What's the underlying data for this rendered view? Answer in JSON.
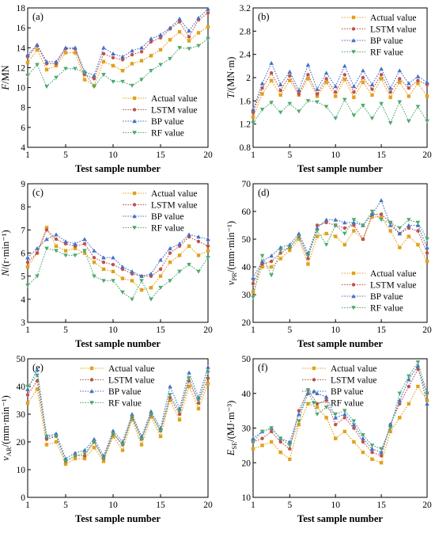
{
  "figure": {
    "series_styles": [
      {
        "name": "Actual value",
        "color": "#E0A21A",
        "marker": "square"
      },
      {
        "name": "LSTM value",
        "color": "#C0504D",
        "marker": "circle"
      },
      {
        "name": "BP value",
        "color": "#4472C4",
        "marker": "triangle-up"
      },
      {
        "name": "RF value",
        "color": "#4FA870",
        "marker": "triangle-down"
      }
    ]
  },
  "chart_data": [
    {
      "type": "line",
      "panel_label": "(a)",
      "xlabel": "Test sample number",
      "ylabel_main": "F",
      "ylabel_sub": "",
      "ylabel_unit": "/MN",
      "xlim": [
        1,
        20
      ],
      "ylim": [
        4,
        18
      ],
      "xticks": [
        1,
        5,
        10,
        15,
        20
      ],
      "yticks": [
        4,
        6,
        8,
        10,
        12,
        14,
        16,
        18
      ],
      "legend_position": "bottom-right",
      "x": [
        1,
        2,
        3,
        4,
        5,
        6,
        7,
        8,
        9,
        10,
        11,
        12,
        13,
        14,
        15,
        16,
        17,
        18,
        19,
        20
      ],
      "series": [
        {
          "name": "Actual value",
          "values": [
            12.5,
            13.8,
            11.8,
            12.2,
            13.5,
            13.5,
            10.8,
            10.2,
            12.6,
            12.2,
            11.7,
            12.4,
            12.7,
            13.2,
            13.8,
            14.8,
            15.6,
            14.7,
            15.5,
            16.1
          ]
        },
        {
          "name": "LSTM value",
          "values": [
            13.1,
            14.2,
            12.4,
            12.4,
            13.9,
            13.9,
            11.3,
            10.9,
            13.4,
            13.0,
            12.8,
            13.3,
            13.6,
            14.6,
            15.0,
            15.9,
            16.6,
            15.1,
            16.8,
            17.5
          ]
        },
        {
          "name": "BP value",
          "values": [
            13.3,
            14.3,
            12.6,
            12.6,
            14.0,
            14.0,
            11.6,
            11.2,
            14.0,
            13.4,
            13.1,
            13.7,
            14.0,
            14.9,
            15.3,
            16.0,
            16.9,
            15.7,
            17.0,
            17.9
          ]
        },
        {
          "name": "RF value",
          "values": [
            11.2,
            12.3,
            10.1,
            11.0,
            11.9,
            11.9,
            11.5,
            10.1,
            11.3,
            10.6,
            10.6,
            10.2,
            10.8,
            11.7,
            12.3,
            12.9,
            14.0,
            13.9,
            14.2,
            14.9
          ]
        }
      ]
    },
    {
      "type": "line",
      "panel_label": "(b)",
      "xlabel": "Test sample number",
      "ylabel_main": "T",
      "ylabel_sub": "",
      "ylabel_unit": "/(MN·m)",
      "xlim": [
        1,
        20
      ],
      "ylim": [
        0.8,
        3.2
      ],
      "xticks": [
        1,
        5,
        10,
        15,
        20
      ],
      "yticks": [
        0.8,
        1.2,
        1.6,
        2.0,
        2.4,
        2.8,
        3.2
      ],
      "legend_position": "top-right",
      "x": [
        1,
        2,
        3,
        4,
        5,
        6,
        7,
        8,
        9,
        10,
        11,
        12,
        13,
        14,
        15,
        16,
        17,
        18,
        19,
        20
      ],
      "series": [
        {
          "name": "Actual value",
          "values": [
            1.32,
            1.72,
            1.95,
            1.7,
            1.95,
            1.7,
            1.98,
            1.68,
            1.92,
            1.68,
            1.97,
            1.66,
            1.92,
            1.7,
            1.98,
            1.66,
            1.92,
            1.68,
            1.9,
            1.68
          ]
        },
        {
          "name": "LSTM value",
          "values": [
            1.4,
            1.82,
            2.08,
            1.78,
            2.03,
            1.72,
            2.05,
            1.72,
            1.98,
            1.75,
            2.05,
            1.75,
            2.0,
            1.8,
            2.05,
            1.75,
            1.98,
            1.82,
            1.95,
            1.88
          ]
        },
        {
          "name": "BP value",
          "values": [
            1.45,
            1.9,
            2.25,
            1.88,
            2.1,
            1.78,
            2.22,
            1.8,
            2.08,
            1.85,
            2.2,
            1.85,
            2.12,
            1.88,
            2.15,
            1.82,
            2.12,
            1.9,
            2.02,
            1.92
          ]
        },
        {
          "name": "RF value",
          "values": [
            1.22,
            1.45,
            1.57,
            1.4,
            1.55,
            1.42,
            1.6,
            1.58,
            1.5,
            1.3,
            1.62,
            1.35,
            1.52,
            1.3,
            1.55,
            1.22,
            1.58,
            1.25,
            1.5,
            1.25
          ]
        }
      ]
    },
    {
      "type": "line",
      "panel_label": "(c)",
      "xlabel": "Test sample number",
      "ylabel_main": "N",
      "ylabel_sub": "",
      "ylabel_unit": "/(r·min⁻¹)",
      "xlim": [
        1,
        20
      ],
      "ylim": [
        3,
        9
      ],
      "xticks": [
        1,
        5,
        10,
        15,
        20
      ],
      "yticks": [
        3,
        4,
        5,
        6,
        7,
        8,
        9
      ],
      "legend_position": "top-right",
      "x": [
        1,
        2,
        3,
        4,
        5,
        6,
        7,
        8,
        9,
        10,
        11,
        12,
        13,
        14,
        15,
        16,
        17,
        18,
        19,
        20
      ],
      "series": [
        {
          "name": "Actual value",
          "values": [
            5.4,
            6.0,
            7.1,
            6.3,
            6.1,
            6.2,
            6.0,
            5.6,
            5.3,
            5.2,
            4.9,
            4.8,
            4.4,
            4.5,
            5.0,
            5.6,
            5.9,
            6.3,
            5.9,
            6.1
          ]
        },
        {
          "name": "LSTM value",
          "values": [
            5.6,
            6.0,
            7.0,
            6.6,
            6.4,
            6.3,
            6.4,
            5.8,
            5.6,
            5.5,
            5.3,
            5.1,
            5.0,
            5.0,
            5.3,
            6.0,
            6.3,
            6.7,
            6.5,
            6.3
          ]
        },
        {
          "name": "BP value",
          "values": [
            5.8,
            6.2,
            6.6,
            6.8,
            6.5,
            6.4,
            6.6,
            6.1,
            5.8,
            5.8,
            5.4,
            5.2,
            5.0,
            5.1,
            5.7,
            6.2,
            6.4,
            6.8,
            6.7,
            6.6
          ]
        },
        {
          "name": "RF value",
          "values": [
            4.6,
            5.0,
            6.2,
            6.1,
            5.9,
            5.9,
            6.1,
            5.0,
            4.8,
            4.8,
            4.3,
            4.0,
            4.8,
            4.0,
            4.5,
            4.8,
            5.2,
            5.5,
            5.2,
            5.8
          ]
        }
      ]
    },
    {
      "type": "line",
      "panel_label": "(d)",
      "xlabel": "Test sample number",
      "ylabel_main": "v",
      "ylabel_sub": "PR",
      "ylabel_unit": "/(mm·min⁻¹)",
      "xlim": [
        1,
        20
      ],
      "ylim": [
        20,
        70
      ],
      "xticks": [
        1,
        5,
        10,
        15,
        20
      ],
      "yticks": [
        20,
        30,
        40,
        50,
        60,
        70
      ],
      "legend_position": "bottom-right",
      "x": [
        1,
        2,
        3,
        4,
        5,
        6,
        7,
        8,
        9,
        10,
        11,
        12,
        13,
        14,
        15,
        16,
        17,
        18,
        19,
        20
      ],
      "series": [
        {
          "name": "Actual value",
          "values": [
            31.0,
            40.0,
            40.0,
            43.0,
            46.0,
            50.0,
            41.0,
            51.0,
            52.0,
            51.0,
            48.0,
            53.0,
            50.0,
            58.0,
            58.0,
            53.0,
            47.0,
            51.0,
            48.0,
            42.0
          ]
        },
        {
          "name": "LSTM value",
          "values": [
            34.0,
            41.0,
            42.0,
            45.0,
            47.0,
            51.0,
            43.0,
            55.0,
            56.0,
            55.0,
            54.0,
            55.0,
            50.0,
            59.0,
            59.0,
            56.0,
            52.0,
            54.0,
            53.0,
            45.0
          ]
        },
        {
          "name": "BP value",
          "values": [
            36.0,
            42.0,
            44.0,
            47.0,
            48.0,
            52.0,
            45.0,
            54.0,
            57.0,
            57.0,
            56.0,
            56.0,
            55.0,
            59.0,
            64.0,
            55.0,
            52.0,
            55.0,
            55.0,
            47.0
          ]
        },
        {
          "name": "RF value",
          "values": [
            29.0,
            44.0,
            37.0,
            46.0,
            47.0,
            51.0,
            44.0,
            53.0,
            48.0,
            55.0,
            52.0,
            57.0,
            55.0,
            60.0,
            57.0,
            56.0,
            54.0,
            57.0,
            56.0,
            50.0
          ]
        }
      ]
    },
    {
      "type": "line",
      "panel_label": "(e)",
      "xlabel": "Test sample number",
      "ylabel_main": "v",
      "ylabel_sub": "AR",
      "ylabel_unit": "/(mm·min⁻¹)",
      "xlim": [
        1,
        20
      ],
      "ylim": [
        0,
        50
      ],
      "xticks": [
        1,
        5,
        10,
        15,
        20
      ],
      "yticks": [
        0,
        10,
        20,
        30,
        40,
        50
      ],
      "legend_position": "top-center",
      "x": [
        1,
        2,
        3,
        4,
        5,
        6,
        7,
        8,
        9,
        10,
        11,
        12,
        13,
        14,
        15,
        16,
        17,
        18,
        19,
        20
      ],
      "series": [
        {
          "name": "Actual value",
          "values": [
            34.0,
            39.0,
            19.0,
            20.0,
            12.0,
            14.0,
            14.0,
            18.0,
            13.0,
            22.0,
            17.0,
            28.0,
            19.0,
            29.0,
            22.0,
            35.0,
            28.0,
            40.0,
            32.0,
            41.0
          ]
        },
        {
          "name": "LSTM value",
          "values": [
            37.0,
            42.0,
            21.0,
            22.0,
            13.0,
            15.0,
            15.0,
            20.0,
            14.0,
            23.0,
            19.0,
            29.0,
            21.0,
            30.0,
            24.0,
            36.0,
            30.0,
            42.0,
            34.0,
            43.0
          ]
        },
        {
          "name": "BP value",
          "values": [
            39.0,
            46.0,
            22.0,
            23.0,
            14.0,
            16.0,
            17.0,
            21.0,
            15.0,
            24.0,
            20.0,
            30.0,
            22.0,
            31.0,
            25.0,
            40.0,
            32.0,
            45.0,
            36.0,
            47.0
          ]
        },
        {
          "name": "RF value",
          "values": [
            40.0,
            44.0,
            22.0,
            22.0,
            13.0,
            15.0,
            16.0,
            20.0,
            14.0,
            23.0,
            19.0,
            29.0,
            21.0,
            30.0,
            24.0,
            37.0,
            31.0,
            43.0,
            35.0,
            45.0
          ]
        }
      ]
    },
    {
      "type": "line",
      "panel_label": "(f)",
      "xlabel": "Test sample number",
      "ylabel_main": "E",
      "ylabel_sub": "SE",
      "ylabel_unit": "/(MJ·m⁻³)",
      "xlim": [
        1,
        20
      ],
      "ylim": [
        10,
        50
      ],
      "xticks": [
        1,
        5,
        10,
        15,
        20
      ],
      "yticks": [
        10,
        20,
        30,
        40,
        50
      ],
      "legend_position": "top-center",
      "x": [
        1,
        2,
        3,
        4,
        5,
        6,
        7,
        8,
        9,
        10,
        11,
        12,
        13,
        14,
        15,
        16,
        17,
        18,
        19,
        20
      ],
      "series": [
        {
          "name": "Actual value",
          "values": [
            24.0,
            25.0,
            26.0,
            23.0,
            21.0,
            31.0,
            37.0,
            36.0,
            33.0,
            27.0,
            29.0,
            26.0,
            23.0,
            21.0,
            20.0,
            29.0,
            33.0,
            37.0,
            42.0,
            38.0
          ]
        },
        {
          "name": "LSTM value",
          "values": [
            26.0,
            27.0,
            29.0,
            26.0,
            24.0,
            35.0,
            41.0,
            37.0,
            38.0,
            31.0,
            33.0,
            30.0,
            26.0,
            23.0,
            22.0,
            31.0,
            37.0,
            42.0,
            47.0,
            40.0
          ]
        },
        {
          "name": "BP value",
          "values": [
            27.0,
            29.0,
            30.0,
            27.0,
            26.0,
            34.0,
            40.0,
            40.0,
            39.0,
            33.0,
            34.0,
            31.0,
            27.0,
            24.0,
            23.0,
            31.0,
            38.0,
            44.0,
            48.0,
            37.0
          ]
        },
        {
          "name": "RF value",
          "values": [
            26.0,
            29.0,
            30.0,
            27.0,
            25.0,
            32.0,
            41.0,
            34.0,
            36.0,
            34.0,
            35.0,
            32.0,
            28.0,
            25.0,
            24.0,
            30.0,
            40.0,
            45.0,
            49.0,
            40.0
          ]
        }
      ]
    }
  ]
}
